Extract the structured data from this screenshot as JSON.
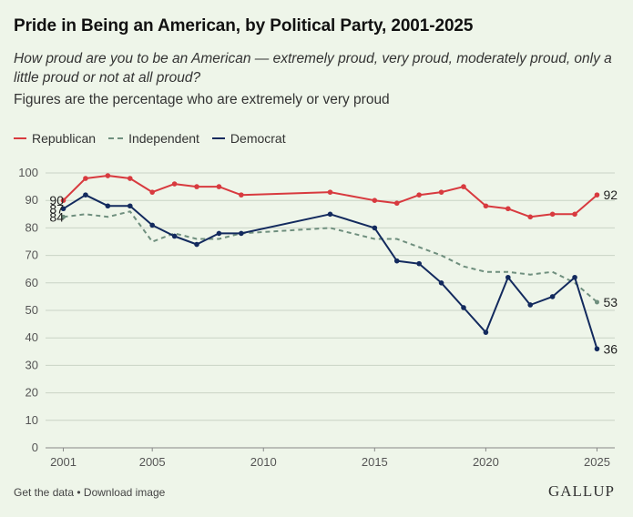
{
  "title": "Pride in Being an American, by Political Party, 2001-2025",
  "question": "How proud are you to be an American — extremely proud, very proud, moderately proud, only a little proud or not at all proud?",
  "note": "Figures are the percentage who are extremely or very proud",
  "footer": {
    "get_data": "Get the data",
    "separator": " • ",
    "download": "Download image"
  },
  "brand": "GALLUP",
  "colors": {
    "republican": "#d83a3f",
    "independent": "#6f8f7e",
    "democrat": "#132a5e",
    "grid": "#c9d3c6",
    "background": "#eef5e9"
  },
  "chart_data": {
    "type": "line",
    "title": "Pride in Being an American, by Political Party, 2001-2025",
    "xlabel": "",
    "ylabel": "",
    "ylim": [
      0,
      100
    ],
    "yticks": [
      0,
      10,
      20,
      30,
      40,
      50,
      60,
      70,
      80,
      90,
      100
    ],
    "xlim": [
      2000.2,
      2025.8
    ],
    "xticks": [
      2001,
      2005,
      2010,
      2015,
      2020,
      2025
    ],
    "grid": true,
    "legend": "top-left",
    "series": [
      {
        "name": "Republican",
        "style": "solid",
        "color": "#d83a3f",
        "x": [
          2001,
          2002,
          2003,
          2004,
          2005,
          2006,
          2007,
          2008,
          2009,
          2013,
          2015,
          2016,
          2017,
          2018,
          2019,
          2020,
          2021,
          2022,
          2023,
          2024,
          2025
        ],
        "values": [
          90,
          98,
          99,
          98,
          93,
          96,
          95,
          95,
          92,
          93,
          90,
          89,
          92,
          93,
          95,
          88,
          87,
          84,
          85,
          85,
          92
        ],
        "start_label": "90",
        "end_label": "92"
      },
      {
        "name": "Independent",
        "style": "dashed",
        "color": "#6f8f7e",
        "x": [
          2001,
          2002,
          2003,
          2004,
          2005,
          2006,
          2007,
          2008,
          2009,
          2013,
          2015,
          2016,
          2017,
          2018,
          2019,
          2020,
          2021,
          2022,
          2023,
          2024,
          2025
        ],
        "values": [
          84,
          85,
          84,
          86,
          75,
          78,
          76,
          76,
          78,
          80,
          76,
          76,
          73,
          70,
          66,
          64,
          64,
          63,
          64,
          60,
          53
        ],
        "start_label": "84",
        "end_label": "53"
      },
      {
        "name": "Democrat",
        "style": "solid",
        "color": "#132a5e",
        "x": [
          2001,
          2002,
          2003,
          2004,
          2005,
          2006,
          2007,
          2008,
          2009,
          2013,
          2015,
          2016,
          2017,
          2018,
          2019,
          2020,
          2021,
          2022,
          2023,
          2024,
          2025
        ],
        "values": [
          87,
          92,
          88,
          88,
          81,
          77,
          74,
          78,
          78,
          85,
          80,
          68,
          67,
          60,
          51,
          42,
          62,
          52,
          55,
          62,
          36
        ],
        "start_label": "87",
        "end_label": "36"
      }
    ]
  }
}
